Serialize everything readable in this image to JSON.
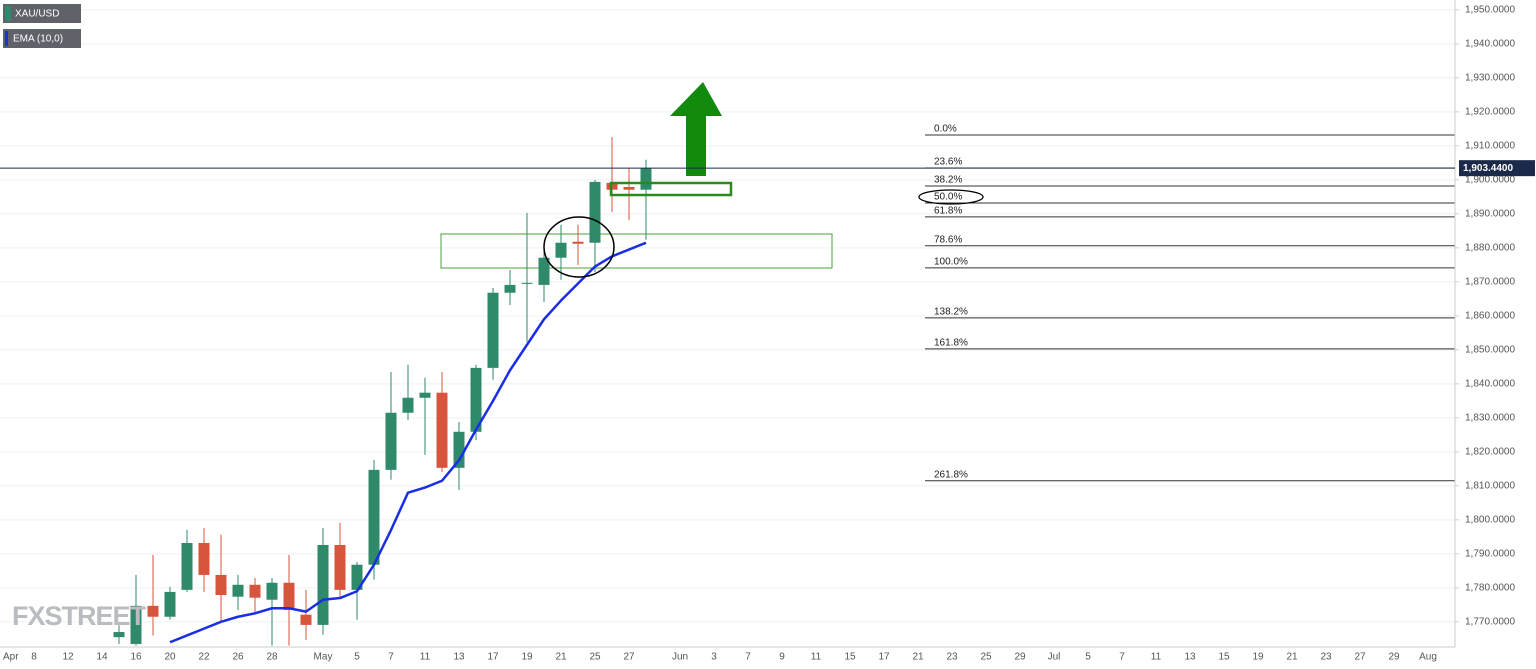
{
  "chart_data": {
    "type": "candlestick",
    "categories": [
      "Apr",
      null,
      "8",
      null,
      "12",
      null,
      "14",
      null,
      "16",
      null,
      "20",
      null,
      "22",
      null,
      "26",
      null,
      "28",
      null,
      null,
      "May",
      null,
      "5",
      null,
      "7",
      null,
      "11",
      null,
      "13",
      null,
      "17",
      null,
      "19",
      null,
      "21",
      null,
      "25",
      null,
      "27",
      null,
      null,
      "Jun",
      null,
      "3",
      null,
      "7",
      null,
      "9",
      null,
      "11",
      null,
      "15",
      null,
      "17",
      null,
      "21",
      null,
      "23",
      null,
      "25",
      null,
      "29",
      null,
      "Jul",
      null,
      "5",
      null,
      "7",
      null,
      "11",
      null,
      "13",
      null,
      "15",
      null,
      "19",
      null,
      "21",
      null,
      "23",
      null,
      "27",
      null,
      "29",
      null,
      "Aug"
    ],
    "series": [
      {
        "name": "XAU/USD",
        "type": "candlestick",
        "up_color": "#2f8a6a",
        "down_color": "#d8553d",
        "open": [
          null,
          null,
          null,
          null,
          null,
          null,
          null,
          1765.5,
          1763.5,
          1774.7,
          1771.5,
          1779.4,
          1793.2,
          1783.8,
          1777.4,
          1780.9,
          1776.5,
          1781.5,
          1772.1,
          1769.1,
          1792.6,
          1779.4,
          1786.8,
          1814.7,
          1831.5,
          1835.9,
          1837.4,
          1815.3,
          1825.9,
          1844.7,
          1866.8,
          1869.4,
          1869.1,
          1877.1,
          1881.8,
          1881.5,
          1899.1,
          1897.9,
          1897.1,
          null,
          null,
          null,
          null,
          null,
          null,
          null,
          null,
          null,
          null,
          null,
          null,
          null,
          null,
          null,
          null,
          null,
          null,
          null,
          null,
          null,
          null,
          null,
          null,
          null,
          null,
          null,
          null,
          null,
          null,
          null,
          null,
          null,
          null,
          null,
          null,
          null,
          null,
          null,
          null,
          null,
          null,
          null,
          null,
          null,
          null
        ],
        "high": [
          null,
          null,
          null,
          null,
          null,
          null,
          null,
          1769,
          1783.8,
          1789.7,
          1780.3,
          1797.1,
          1797.6,
          1795.6,
          1783.8,
          1782.9,
          1782.9,
          1789.7,
          1779.4,
          1797.6,
          1799.1,
          1787.6,
          1817.6,
          1843.5,
          1845.6,
          1841.8,
          1843.5,
          1828.8,
          1845.6,
          1868.2,
          1873.5,
          1890.3,
          1880.9,
          1886.8,
          1886.8,
          1900,
          1912.6,
          1903.5,
          1905.9,
          null,
          null,
          null,
          null,
          null,
          null,
          null,
          null,
          null,
          null,
          null,
          null,
          null,
          null,
          null,
          null,
          null,
          null,
          null,
          null,
          null,
          null,
          null,
          null,
          null,
          null,
          null,
          null,
          null,
          null,
          null,
          null,
          null,
          null,
          null,
          null,
          null,
          null,
          null,
          null,
          null,
          null,
          null,
          null,
          null,
          null
        ],
        "low": [
          null,
          null,
          null,
          null,
          null,
          null,
          null,
          1763.5,
          1763,
          1766,
          1770.6,
          1778.8,
          1778.8,
          1770,
          1773.5,
          1772.9,
          1763,
          1763,
          1764.7,
          1766.2,
          1777.1,
          1770.6,
          1782.4,
          1811.8,
          1829.4,
          1819.1,
          1814.1,
          1808.8,
          1823.5,
          1841.2,
          1863.2,
          1852.4,
          1864.1,
          1870.6,
          1875,
          1872.9,
          1890.6,
          1888.2,
          1882.4,
          null,
          null,
          null,
          null,
          null,
          null,
          null,
          null,
          null,
          null,
          null,
          null,
          null,
          null,
          null,
          null,
          null,
          null,
          null,
          null,
          null,
          null,
          null,
          null,
          null,
          null,
          null,
          null,
          null,
          null,
          null,
          null,
          null,
          null,
          null,
          null,
          null,
          null,
          null,
          null,
          null,
          null,
          null,
          null,
          null,
          null
        ],
        "close": [
          null,
          null,
          null,
          null,
          null,
          null,
          null,
          1767,
          1774.7,
          1771.5,
          1778.8,
          1793.2,
          1783.8,
          1777.9,
          1780.9,
          1777.1,
          1781.5,
          1773.5,
          1769.1,
          1792.6,
          1779.4,
          1786.8,
          1814.7,
          1831.5,
          1835.9,
          1837.4,
          1815.3,
          1825.9,
          1844.7,
          1866.8,
          1869.1,
          1869.7,
          1877.1,
          1881.5,
          1881.2,
          1899.4,
          1897.1,
          1897.1,
          1903.44,
          null,
          null,
          null,
          null,
          null,
          null,
          null,
          null,
          null,
          null,
          null,
          null,
          null,
          null,
          null,
          null,
          null,
          null,
          null,
          null,
          null,
          null,
          null,
          null,
          null,
          null,
          null,
          null,
          null,
          null,
          null,
          null,
          null,
          null,
          null,
          null,
          null,
          null,
          null,
          null,
          null,
          null,
          null,
          null,
          null,
          null
        ]
      },
      {
        "name": "EMA (10,0)",
        "type": "line",
        "color": "#1a2ee6",
        "values": [
          null,
          null,
          null,
          null,
          null,
          null,
          null,
          null,
          null,
          null,
          1764,
          1766,
          1768,
          1770,
          1771.5,
          1772.5,
          1774,
          1774,
          1773,
          1776.5,
          1777,
          1779,
          1786.8,
          1797,
          1808,
          1809.5,
          1811.5,
          1817.5,
          1826.5,
          1835,
          1844,
          1851.5,
          1859,
          1864.5,
          1869.5,
          1874.5,
          1877.5,
          1879.5,
          1881.5,
          null,
          null,
          null,
          null,
          null,
          null,
          null,
          null,
          null,
          null,
          null,
          null,
          null,
          null,
          null,
          null,
          null,
          null,
          null,
          null,
          null,
          null,
          null,
          null,
          null,
          null,
          null,
          null,
          null,
          null,
          null,
          null,
          null,
          null,
          null,
          null,
          null,
          null,
          null,
          null,
          null,
          null,
          null,
          null,
          null,
          null
        ]
      }
    ],
    "last_price": {
      "value": 1903.44,
      "label": "1,903.4400"
    },
    "fibonacci": [
      {
        "label": "0.0%",
        "value": 1913.2
      },
      {
        "label": "23.6%",
        "value": 1903.5
      },
      {
        "label": "38.2%",
        "value": 1898.2
      },
      {
        "label": "50.0%",
        "value": 1893.2
      },
      {
        "label": "61.8%",
        "value": 1889.1
      },
      {
        "label": "78.6%",
        "value": 1880.6
      },
      {
        "label": "100.0%",
        "value": 1874.1
      },
      {
        "label": "138.2%",
        "value": 1859.4
      },
      {
        "label": "161.8%",
        "value": 1850.3
      },
      {
        "label": "261.8%",
        "value": 1811.5
      }
    ],
    "ylim": [
      1762.6,
      1952.9
    ],
    "yticks": [
      {
        "value": 1770,
        "label": "1,770.0000"
      },
      {
        "value": 1780,
        "label": "1,780.0000"
      },
      {
        "value": 1790,
        "label": "1,790.0000"
      },
      {
        "value": 1800,
        "label": "1,800.0000"
      },
      {
        "value": 1810,
        "label": "1,810.0000"
      },
      {
        "value": 1820,
        "label": "1,820.0000"
      },
      {
        "value": 1830,
        "label": "1,830.0000"
      },
      {
        "value": 1840,
        "label": "1,840.0000"
      },
      {
        "value": 1850,
        "label": "1,850.0000"
      },
      {
        "value": 1860,
        "label": "1,860.0000"
      },
      {
        "value": 1870,
        "label": "1,870.0000"
      },
      {
        "value": 1880,
        "label": "1,880.0000"
      },
      {
        "value": 1890,
        "label": "1,890.0000"
      },
      {
        "value": 1900,
        "label": "1,900.0000"
      },
      {
        "value": 1910,
        "label": "1,910.0000"
      },
      {
        "value": 1920,
        "label": "1,920.0000"
      },
      {
        "value": 1930,
        "label": "1,930.0000"
      },
      {
        "value": 1940,
        "label": "1,940.0000"
      },
      {
        "value": 1950,
        "label": "1,950.0000"
      }
    ],
    "grid": true,
    "watermark": "FXSTREET"
  }
}
